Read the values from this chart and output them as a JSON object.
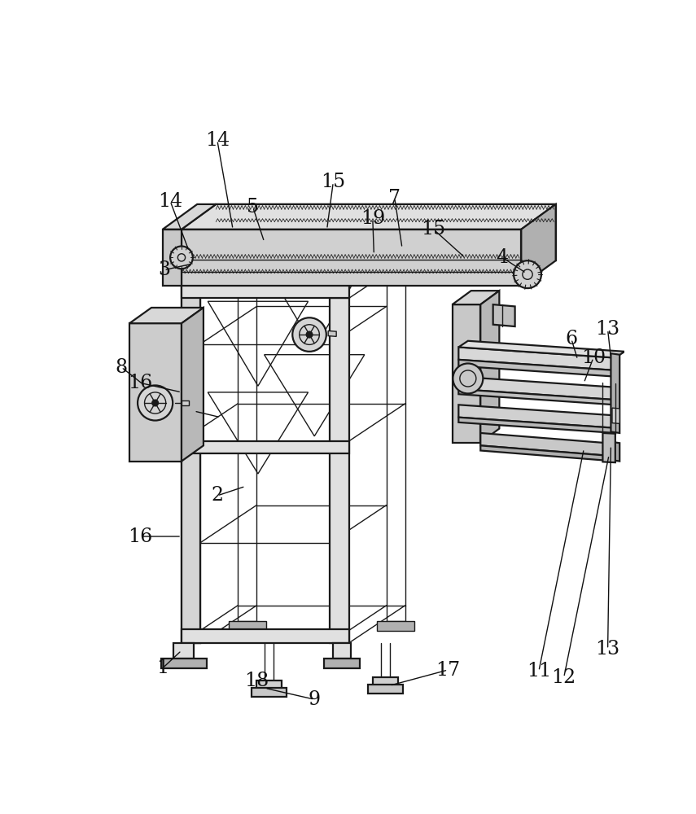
{
  "background_color": "#ffffff",
  "line_color": "#1a1a1a",
  "label_color": "#111111",
  "label_fontsize": 17,
  "fig_width": 8.55,
  "fig_height": 10.0,
  "fg": "#c8c8c8",
  "mg": "#b0b0b0",
  "lg": "#e0e0e0",
  "dg": "#989898"
}
